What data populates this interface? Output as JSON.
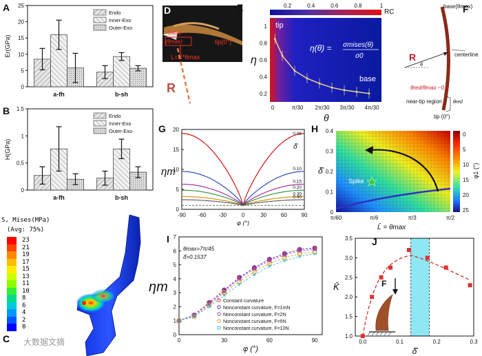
{
  "panels": {
    "A": {
      "label": "A"
    },
    "B": {
      "label": "B"
    },
    "C": {
      "label": "C"
    },
    "D": {
      "label": "D"
    },
    "E": {
      "label": "E"
    },
    "F": {
      "label": "F"
    },
    "G": {
      "label": "G"
    },
    "H": {
      "label": "H"
    },
    "I": {
      "label": "I"
    },
    "J": {
      "label": "J"
    }
  },
  "panel_c": {
    "contour_title": "S, Mises(MPa)",
    "avg_label": "(Avg: 75%)",
    "scale_values": [
      "23",
      "21",
      "19",
      "17",
      "15",
      "13",
      "11",
      "10",
      "8",
      "6",
      "4",
      "2",
      "0"
    ],
    "scale_colors": [
      "#ff0000",
      "#ff4400",
      "#ff8800",
      "#ffbb00",
      "#ffee00",
      "#ccff00",
      "#88ff00",
      "#33ee33",
      "#00dd88",
      "#00ccdd",
      "#0099ff",
      "#0055ff",
      "#0000ff"
    ],
    "watermark": "大数据文摘"
  },
  "panel_d": {
    "base_label": "base",
    "theta_max_label": "(θmax)",
    "tip_label": "tip(0°)",
    "arc_formula": "L=R*θmax",
    "radius_label": "R"
  },
  "panel_e": {
    "colorbar_ticks": [
      "0.2",
      "0.4",
      "0.6",
      "0.8",
      "1"
    ],
    "colorbar_label": "RC",
    "tip_text": "tip",
    "base_text": "base",
    "formula_lhs": "η(θ) =",
    "formula_num": "σmises(θ)",
    "formula_den": "σ0",
    "y_axis_label": "η",
    "x_axis_label": "θ",
    "y_ticks": [
      "1",
      "0.8",
      "0.6",
      "0.4",
      "0.2"
    ],
    "x_ticks": [
      "0",
      "π/30",
      "2π/30",
      "3π/30",
      "4π/30"
    ]
  },
  "panel_f": {
    "base_label": "base(θmax)",
    "centerline_label": "centerline",
    "radius_label": "R",
    "theta_label": "θ",
    "ratio_label": "θred/θmax ~0.1",
    "near_tip_label": "near-tip region",
    "theta_red_label": "θred",
    "tip_label": "tip (0°)"
  },
  "panel_h": {
    "y_axis_label": "δ̂",
    "x_axis_label": "L̂ = θmax",
    "colorbar_label": "φ1 (°)",
    "colorbar_ticks": [
      "0",
      "5",
      "10",
      "15",
      "20",
      "25"
    ],
    "y_ticks": [
      "0.4",
      "0.3",
      "0.2",
      "0.1",
      "0"
    ],
    "x_ticks": [
      "π/60",
      "π/6",
      "π/3",
      "π/2"
    ],
    "spike_label": "Spike"
  },
  "panel_i": {
    "annotation_line1": "θmax=7π/45",
    "annotation_line2": "δ̂=0.1537",
    "legend": [
      "Constant curvature",
      "Nonconstant curvature, F=1mN",
      "Nonconstant curvature, F=2N",
      "Nonconstant curvature, F=5N",
      "Nonconstant curvature, F=10N"
    ]
  },
  "panel_j": {
    "inset_label": "F",
    "highlight_range": [
      0.13,
      0.18
    ]
  },
  "chart_data": [
    {
      "id": "A",
      "type": "bar",
      "ylabel": "Er(GPa)",
      "ylim": [
        0,
        25
      ],
      "yticks": [
        "0",
        "5",
        "10",
        "15",
        "20",
        "25"
      ],
      "categories": [
        "a-fh",
        "b-sh"
      ],
      "series": [
        {
          "name": "Endo",
          "values": [
            8.5,
            4.5
          ],
          "errors": [
            3.3,
            2.0
          ]
        },
        {
          "name": "Inner-Exo",
          "values": [
            16.0,
            9.3
          ],
          "errors": [
            4.5,
            1.2
          ]
        },
        {
          "name": "Outer-Exo",
          "values": [
            5.8,
            5.7
          ],
          "errors": [
            4.5,
            0.8
          ]
        }
      ]
    },
    {
      "id": "B",
      "type": "bar",
      "ylabel": "H(GPa)",
      "ylim": [
        0,
        1.5
      ],
      "yticks": [
        "0",
        "0.5",
        "1",
        "1.5"
      ],
      "categories": [
        "a-fh",
        "b-sh"
      ],
      "series": [
        {
          "name": "Endo",
          "values": [
            0.27,
            0.22
          ],
          "errors": [
            0.16,
            0.13
          ]
        },
        {
          "name": "Inner-Exo",
          "values": [
            0.76,
            0.76
          ],
          "errors": [
            0.41,
            0.18
          ]
        },
        {
          "name": "Outer-Exo",
          "values": [
            0.2,
            0.33
          ],
          "errors": [
            0.1,
            0.1
          ]
        }
      ]
    },
    {
      "id": "E",
      "type": "line",
      "x": [
        0.02,
        0.05,
        0.1,
        0.15,
        0.2,
        0.25,
        0.3,
        0.35,
        0.4
      ],
      "y": [
        0.85,
        0.65,
        0.47,
        0.38,
        0.32,
        0.27,
        0.24,
        0.22,
        0.2
      ],
      "xlim": [
        0,
        0.45
      ],
      "ylim": [
        0.1,
        1.1
      ]
    },
    {
      "id": "G",
      "type": "line",
      "xlabel": "φ (°)",
      "ylabel": "ηm",
      "xlim": [
        -90,
        90
      ],
      "ylim": [
        0,
        20
      ],
      "xticks": [
        "-90",
        "-60",
        "-30",
        "0",
        "30",
        "60",
        "90"
      ],
      "yticks": [
        "0",
        "5",
        "10",
        "15",
        "20"
      ],
      "legend_title": "δ̂",
      "series": [
        {
          "name": "0.05",
          "peak": 19.0,
          "color": "#cc0000"
        },
        {
          "name": "0.10",
          "peak": 9.5,
          "color": "#1f3bb3"
        },
        {
          "name": "0.15",
          "peak": 6.3,
          "color": "#9b1fa0"
        },
        {
          "name": "0.20",
          "peak": 4.8,
          "color": "#2a8a3a"
        },
        {
          "name": "0.30",
          "peak": 3.2,
          "color": "#d48a00"
        },
        {
          "name": "0.40",
          "peak": 2.4,
          "color": "#555555"
        }
      ]
    },
    {
      "id": "I",
      "type": "line",
      "xlabel": "φ (°)",
      "ylabel": "ηm",
      "xlim": [
        0,
        95
      ],
      "ylim": [
        0,
        7
      ],
      "xticks": [
        "0",
        "30",
        "60",
        "90"
      ],
      "yticks": [
        "0",
        "1",
        "2",
        "3",
        "4",
        "5",
        "6",
        "7"
      ],
      "x": [
        0,
        10,
        20,
        30,
        40,
        50,
        60,
        70,
        80,
        90
      ],
      "series": [
        {
          "name": "Constant curvature",
          "values": [
            1.0,
            1.4,
            2.3,
            3.2,
            4.1,
            4.8,
            5.4,
            5.8,
            6.1,
            6.2
          ],
          "color": "#e0305a"
        },
        {
          "name": "Nonconstant curvature, F=1mN",
          "values": [
            1.0,
            1.4,
            2.3,
            3.2,
            4.1,
            4.8,
            5.4,
            5.8,
            6.1,
            6.2
          ],
          "color": "#4a2fa0"
        },
        {
          "name": "Nonconstant curvature, F=2N",
          "values": [
            1.0,
            1.4,
            2.2,
            3.1,
            4.0,
            4.7,
            5.3,
            5.7,
            6.0,
            6.1
          ],
          "color": "#9b40c0"
        },
        {
          "name": "Nonconstant curvature, F=5N",
          "values": [
            1.0,
            1.3,
            2.1,
            3.0,
            3.8,
            4.5,
            5.1,
            5.5,
            5.8,
            5.9
          ],
          "color": "#d09a20"
        },
        {
          "name": "Nonconstant curvature, F=10N",
          "values": [
            1.0,
            1.3,
            2.0,
            2.8,
            3.6,
            4.3,
            4.9,
            5.3,
            5.6,
            5.8
          ],
          "color": "#30b0d0"
        }
      ]
    },
    {
      "id": "J",
      "type": "scatter",
      "xlabel": "δ̂",
      "ylabel": "K̂",
      "xlim": [
        -0.02,
        0.3
      ],
      "ylim": [
        1.0,
        3.5
      ],
      "xticks": [
        "0.0",
        "0.1",
        "0.2",
        "0.3"
      ],
      "yticks": [
        "1.0",
        "1.5",
        "2.0",
        "2.5",
        "3.0",
        "3.5"
      ],
      "x": [
        0.0,
        0.025,
        0.05,
        0.075,
        0.125,
        0.175,
        0.225,
        0.29
      ],
      "y": [
        1.0,
        2.0,
        2.5,
        2.75,
        3.2,
        3.0,
        2.75,
        2.3
      ]
    }
  ]
}
